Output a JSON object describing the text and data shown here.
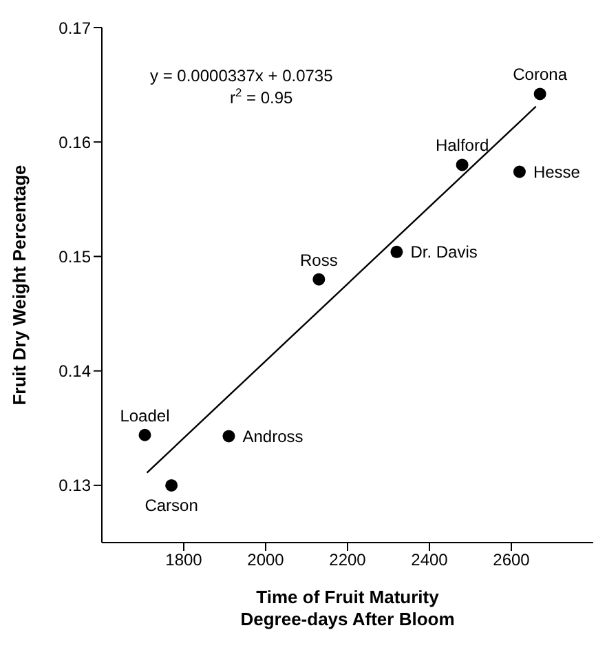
{
  "chart_data": {
    "type": "scatter",
    "xlabel": "Time of Fruit Maturity\nDegree-days After Bloom",
    "ylabel": "Fruit Dry Weight Percentage",
    "xlim": [
      1600,
      2800
    ],
    "xticks": [
      1800,
      2000,
      2200,
      2400,
      2600
    ],
    "ylim": [
      0.125,
      0.17
    ],
    "yticks": [
      0.13,
      0.14,
      0.15,
      0.16,
      0.17
    ],
    "grid": false,
    "legend": false,
    "marker": "circle",
    "series": [
      {
        "color": "#000000",
        "x": [
          2670,
          2480,
          2620,
          2320,
          2130,
          1705,
          1910,
          1770
        ],
        "values": [
          0.1642,
          0.158,
          0.1574,
          0.1504,
          0.148,
          0.1344,
          0.1343,
          0.13
        ]
      },
      {
        "type": "line",
        "marker": "none",
        "color": "#000000",
        "x": [
          1710,
          2660
        ],
        "values": [
          0.1311,
          0.1631
        ]
      }
    ],
    "annotations": [
      "y = 0.0000337x + 0.0735",
      "r$^{2}$ = 0.95",
      {
        "text": "Corona",
        "x": 2670,
        "y": 0.1642
      },
      {
        "text": "Halford",
        "x": 2480,
        "y": 0.158
      },
      {
        "text": "Hesse",
        "x": 2620,
        "y": 0.1574
      },
      {
        "text": "Dr. Davis",
        "x": 2320,
        "y": 0.1504
      },
      {
        "text": "Ross",
        "x": 2130,
        "y": 0.148
      },
      {
        "text": "Loadel",
        "x": 1705,
        "y": 0.1344
      },
      {
        "text": "Andross",
        "x": 1910,
        "y": 0.1343
      },
      {
        "text": "Carson",
        "x": 1770,
        "y": 0.13
      }
    ]
  }
}
